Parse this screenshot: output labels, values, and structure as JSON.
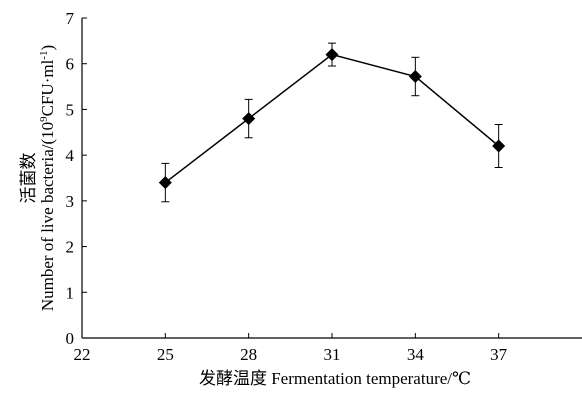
{
  "chart_data": {
    "type": "line",
    "title": "",
    "xlabel": "发酵温度 Fermentation temperature/℃",
    "ylabel_cn": "活菌数",
    "ylabel_en_prefix": "Number of live bacteria/(10",
    "ylabel_sup": "9",
    "ylabel_en_mid": "CFU·ml",
    "ylabel_sup2": "-1",
    "ylabel_en_suffix": ")",
    "xlim": [
      22,
      40
    ],
    "ylim": [
      0,
      7
    ],
    "x_ticks": [
      22,
      25,
      28,
      31,
      34,
      37
    ],
    "y_ticks": [
      0,
      1,
      2,
      3,
      4,
      5,
      6,
      7
    ],
    "grid": false,
    "legend": "none",
    "series": [
      {
        "x": [
          25,
          28,
          31,
          34,
          37
        ],
        "y": [
          3.4,
          4.8,
          6.2,
          5.72,
          4.2
        ],
        "error": [
          0.42,
          0.42,
          0.25,
          0.42,
          0.47
        ],
        "marker": "diamond",
        "color": "#000000"
      }
    ]
  }
}
